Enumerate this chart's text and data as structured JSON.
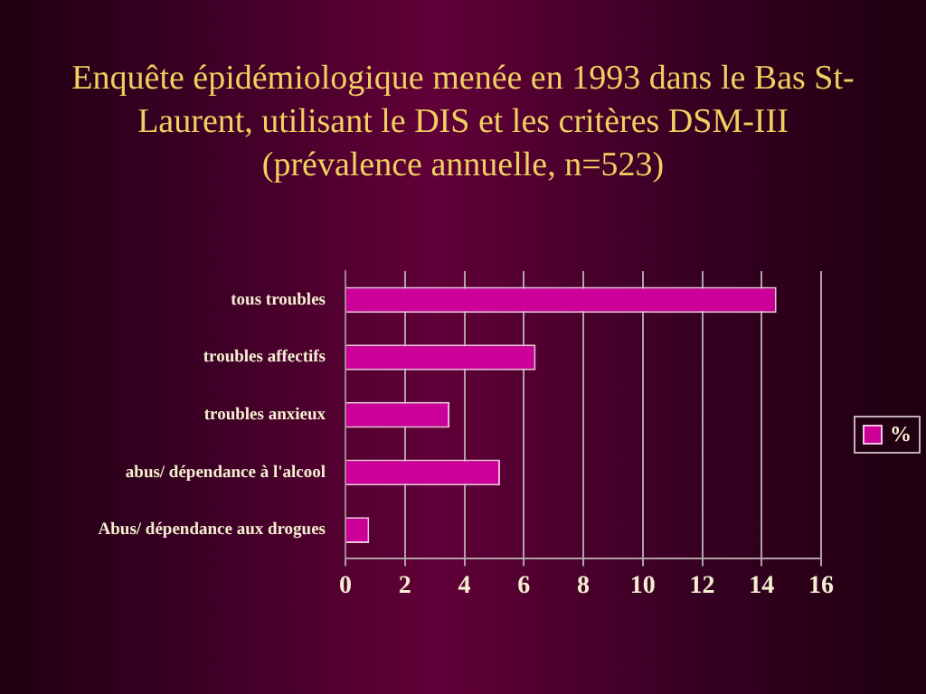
{
  "chart_data": {
    "type": "bar",
    "orientation": "horizontal",
    "title": "Enquête épidémiologique menée en 1993 dans le Bas St-Laurent, utilisant le DIS et les critères DSM-III (prévalence annuelle, n=523)",
    "categories": [
      "tous troubles",
      "troubles affectifs",
      "troubles anxieux",
      "abus/ dépendance à l'alcool",
      "Abus/ dépendance aux drogues"
    ],
    "series": [
      {
        "name": "%",
        "color": "#cc0099",
        "values": [
          14.5,
          6.4,
          3.5,
          5.2,
          0.8
        ]
      }
    ],
    "xlim": [
      0,
      16
    ],
    "xticks": [
      0,
      2,
      4,
      6,
      8,
      10,
      12,
      14,
      16
    ],
    "grid": "x",
    "legend": "right"
  }
}
